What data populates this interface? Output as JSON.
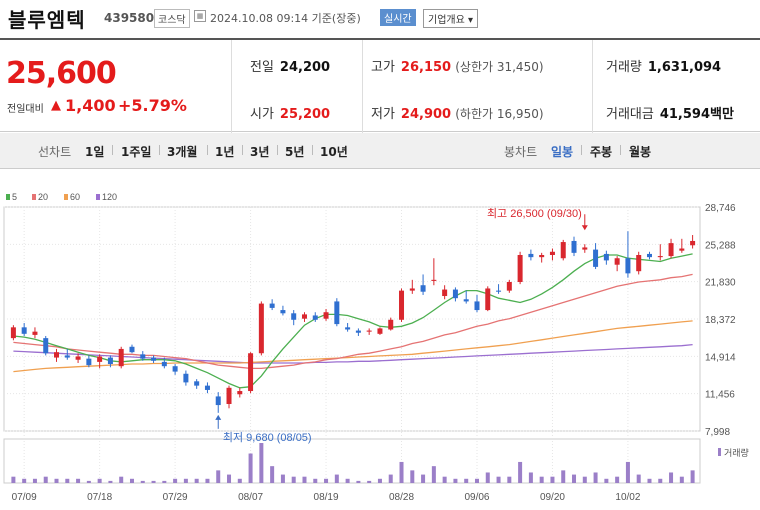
{
  "header": {
    "name": "블루엠텍",
    "code": "439580",
    "market": "코스닥",
    "date_text": "2024.10.08 09:14 기준(장중)",
    "live_label": "실시간",
    "company_label": "기업개요 ▾"
  },
  "price": {
    "current": "25,600",
    "change_label": "전일대비",
    "change_arrow": "▲",
    "change": "1,400",
    "change_pct": "+5.79%"
  },
  "info": {
    "prev_close_label": "전일",
    "prev_close": "24,200",
    "open_label": "시가",
    "open": "25,200",
    "high_label": "고가",
    "high": "26,150",
    "upper_limit": "(상한가 31,450)",
    "low_label": "저가",
    "low": "24,900",
    "lower_limit": "(하한가 16,950)",
    "volume_label": "거래량",
    "volume": "1,631,094",
    "amount_label": "거래대금",
    "amount": "41,594",
    "amount_unit": "백만"
  },
  "tabs": {
    "line_title": "선차트",
    "line_tabs": [
      "1일",
      "1주일",
      "3개월",
      "1년",
      "3년",
      "5년",
      "10년"
    ],
    "candle_title": "봉차트",
    "candle_tabs": [
      "일봉",
      "주봉",
      "월봉"
    ],
    "active_candle": "일봉"
  },
  "chart_data": {
    "type": "candlestick",
    "legend": [
      {
        "name": "5",
        "color": "#4caf50"
      },
      {
        "name": "20",
        "color": "#e57373"
      },
      {
        "name": "60",
        "color": "#f0a050"
      },
      {
        "name": "120",
        "color": "#9b6fd0"
      }
    ],
    "y_ticks": [
      7998,
      11456,
      14914,
      18372,
      21830,
      25288,
      28746
    ],
    "y_tick_labels": [
      "7,998",
      "11,456",
      "14,914",
      "18,372",
      "21,830",
      "25,288",
      "28,746"
    ],
    "x_labels": [
      "07/09",
      "07/18",
      "07/29",
      "08/07",
      "08/19",
      "08/28",
      "09/06",
      "09/20",
      "10/02"
    ],
    "x_label_index": [
      1,
      8,
      15,
      22,
      29,
      36,
      43,
      50,
      57
    ],
    "high_annotation": "최고 26,500 (09/30)",
    "high_index": 53,
    "high_value": 26500,
    "low_annotation": "최저 9,680 (08/05)",
    "low_index": 19,
    "low_value": 9680,
    "volume_label": "거래량",
    "up_color": "#d9272e",
    "down_color": "#2f6fd0",
    "candles": [
      {
        "o": 16600,
        "h": 17800,
        "l": 16400,
        "c": 17600
      },
      {
        "o": 17600,
        "h": 18000,
        "l": 16800,
        "c": 17000
      },
      {
        "o": 16900,
        "h": 17600,
        "l": 16600,
        "c": 17200
      },
      {
        "o": 16600,
        "h": 16800,
        "l": 15000,
        "c": 15200
      },
      {
        "o": 14800,
        "h": 15600,
        "l": 14400,
        "c": 15300
      },
      {
        "o": 15000,
        "h": 15600,
        "l": 14600,
        "c": 14800
      },
      {
        "o": 14600,
        "h": 15200,
        "l": 14300,
        "c": 14900
      },
      {
        "o": 14700,
        "h": 15000,
        "l": 13900,
        "c": 14100
      },
      {
        "o": 14400,
        "h": 15100,
        "l": 13800,
        "c": 14900
      },
      {
        "o": 14800,
        "h": 15000,
        "l": 13900,
        "c": 14200
      },
      {
        "o": 14000,
        "h": 15800,
        "l": 13800,
        "c": 15600
      },
      {
        "o": 15800,
        "h": 16000,
        "l": 15200,
        "c": 15300
      },
      {
        "o": 15100,
        "h": 15400,
        "l": 14500,
        "c": 14700
      },
      {
        "o": 14800,
        "h": 15000,
        "l": 14300,
        "c": 14500
      },
      {
        "o": 14400,
        "h": 14800,
        "l": 13800,
        "c": 14000
      },
      {
        "o": 14000,
        "h": 14200,
        "l": 13200,
        "c": 13500
      },
      {
        "o": 13300,
        "h": 13600,
        "l": 12200,
        "c": 12500
      },
      {
        "o": 12600,
        "h": 12800,
        "l": 11900,
        "c": 12200
      },
      {
        "o": 12200,
        "h": 12500,
        "l": 11500,
        "c": 11800
      },
      {
        "o": 11200,
        "h": 11600,
        "l": 9680,
        "c": 10400
      },
      {
        "o": 10500,
        "h": 12200,
        "l": 10100,
        "c": 12000
      },
      {
        "o": 11400,
        "h": 12000,
        "l": 11100,
        "c": 11700
      },
      {
        "o": 11700,
        "h": 15300,
        "l": 11500,
        "c": 15200
      },
      {
        "o": 15200,
        "h": 20000,
        "l": 15000,
        "c": 19800
      },
      {
        "o": 19800,
        "h": 20200,
        "l": 19200,
        "c": 19400
      },
      {
        "o": 19200,
        "h": 19600,
        "l": 18700,
        "c": 18900
      },
      {
        "o": 18900,
        "h": 19200,
        "l": 17800,
        "c": 18300
      },
      {
        "o": 18400,
        "h": 19000,
        "l": 18100,
        "c": 18800
      },
      {
        "o": 18700,
        "h": 19000,
        "l": 18100,
        "c": 18300
      },
      {
        "o": 18400,
        "h": 19300,
        "l": 18200,
        "c": 19000
      },
      {
        "o": 20000,
        "h": 20300,
        "l": 17700,
        "c": 17900
      },
      {
        "o": 17600,
        "h": 18000,
        "l": 17200,
        "c": 17400
      },
      {
        "o": 17300,
        "h": 17500,
        "l": 16800,
        "c": 17100
      },
      {
        "o": 17200,
        "h": 17500,
        "l": 16900,
        "c": 17300
      },
      {
        "o": 17000,
        "h": 17600,
        "l": 16900,
        "c": 17500
      },
      {
        "o": 17400,
        "h": 18500,
        "l": 17300,
        "c": 18300
      },
      {
        "o": 18300,
        "h": 21200,
        "l": 18100,
        "c": 21000
      },
      {
        "o": 21000,
        "h": 22000,
        "l": 20700,
        "c": 21200
      },
      {
        "o": 21500,
        "h": 22500,
        "l": 20600,
        "c": 20900
      },
      {
        "o": 21900,
        "h": 24000,
        "l": 21500,
        "c": 22000
      },
      {
        "o": 20500,
        "h": 21500,
        "l": 20200,
        "c": 21100
      },
      {
        "o": 21100,
        "h": 21300,
        "l": 20000,
        "c": 20300
      },
      {
        "o": 20200,
        "h": 21000,
        "l": 19800,
        "c": 20000
      },
      {
        "o": 20000,
        "h": 20600,
        "l": 19000,
        "c": 19200
      },
      {
        "o": 19200,
        "h": 21400,
        "l": 19100,
        "c": 21200
      },
      {
        "o": 21000,
        "h": 21600,
        "l": 20700,
        "c": 20900
      },
      {
        "o": 21000,
        "h": 22000,
        "l": 20800,
        "c": 21800
      },
      {
        "o": 21800,
        "h": 24600,
        "l": 21600,
        "c": 24300
      },
      {
        "o": 24400,
        "h": 24800,
        "l": 23800,
        "c": 24100
      },
      {
        "o": 24100,
        "h": 24500,
        "l": 23600,
        "c": 24300
      },
      {
        "o": 24300,
        "h": 24900,
        "l": 23800,
        "c": 24600
      },
      {
        "o": 24000,
        "h": 25700,
        "l": 23800,
        "c": 25500
      },
      {
        "o": 25600,
        "h": 26000,
        "l": 24200,
        "c": 24500
      },
      {
        "o": 24800,
        "h": 25300,
        "l": 24500,
        "c": 25000
      },
      {
        "o": 24800,
        "h": 25400,
        "l": 23000,
        "c": 23200
      },
      {
        "o": 24400,
        "h": 24700,
        "l": 23400,
        "c": 23800
      },
      {
        "o": 23400,
        "h": 24200,
        "l": 22800,
        "c": 24000
      },
      {
        "o": 24000,
        "h": 26500,
        "l": 22200,
        "c": 22600
      },
      {
        "o": 22800,
        "h": 24600,
        "l": 22500,
        "c": 24300
      },
      {
        "o": 24400,
        "h": 24600,
        "l": 23900,
        "c": 24100
      },
      {
        "o": 24100,
        "h": 25300,
        "l": 23800,
        "c": 24200
      },
      {
        "o": 24200,
        "h": 25800,
        "l": 24000,
        "c": 25400
      },
      {
        "o": 24700,
        "h": 25800,
        "l": 24500,
        "c": 24900
      },
      {
        "o": 25200,
        "h": 26150,
        "l": 24900,
        "c": 25600
      }
    ],
    "volumes": [
      3,
      2,
      2,
      3,
      2,
      2,
      2,
      1,
      2,
      1,
      3,
      2,
      1,
      1,
      1,
      2,
      2,
      2,
      2,
      6,
      4,
      2,
      14,
      19,
      8,
      4,
      3,
      3,
      2,
      2,
      4,
      2,
      1,
      1,
      2,
      4,
      10,
      6,
      4,
      8,
      3,
      2,
      2,
      2,
      5,
      3,
      3,
      10,
      5,
      3,
      3,
      6,
      4,
      3,
      5,
      2,
      3,
      10,
      4,
      2,
      2,
      5,
      3,
      6
    ],
    "ma5": [
      16800,
      16700,
      16500,
      16200,
      15900,
      15600,
      15300,
      15000,
      14800,
      14500,
      14400,
      14500,
      14600,
      14600,
      14600,
      14500,
      14200,
      13800,
      13400,
      12900,
      12400,
      12000,
      12100,
      13100,
      14400,
      15600,
      16700,
      17800,
      18400,
      18800,
      18800,
      18700,
      18400,
      18100,
      17700,
      17600,
      17700,
      18000,
      18500,
      19200,
      19900,
      20500,
      21000,
      21000,
      20700,
      20300,
      20100,
      19900,
      20200,
      20700,
      21300,
      22000,
      22800,
      23500,
      24000,
      24300,
      24300,
      24000,
      23900,
      23800,
      23700,
      24000,
      24200,
      24400
    ],
    "ma20": [
      16200,
      16100,
      16000,
      15900,
      15800,
      15600,
      15500,
      15400,
      15300,
      15200,
      15100,
      15100,
      15000,
      15000,
      14900,
      14800,
      14700,
      14500,
      14300,
      14100,
      14000,
      13900,
      13800,
      13800,
      13900,
      14000,
      14100,
      14300,
      14400,
      14600,
      14700,
      14900,
      15100,
      15200,
      15400,
      15600,
      15800,
      16100,
      16300,
      16600,
      16900,
      17100,
      17400,
      17700,
      17900,
      18200,
      18400,
      18700,
      19000,
      19300,
      19600,
      19900,
      20200,
      20500,
      20800,
      21100,
      21400,
      21600,
      21800,
      21900,
      22000,
      22200,
      22300,
      22500
    ],
    "ma60": [
      13500,
      13600,
      13700,
      13800,
      13850,
      13900,
      13950,
      14000,
      14050,
      14100,
      14150,
      14200,
      14200,
      14250,
      14250,
      14300,
      14300,
      14300,
      14300,
      14300,
      14300,
      14300,
      14350,
      14400,
      14450,
      14500,
      14550,
      14600,
      14650,
      14700,
      14750,
      14800,
      14850,
      14900,
      14950,
      15000,
      15050,
      15100,
      15200,
      15300,
      15400,
      15500,
      15600,
      15700,
      15800,
      15900,
      16000,
      16150,
      16300,
      16450,
      16600,
      16750,
      16900,
      17050,
      17200,
      17350,
      17500,
      17600,
      17700,
      17800,
      17900,
      18000,
      18100,
      18200
    ],
    "ma120": [
      15400,
      15350,
      15300,
      15250,
      15200,
      15150,
      15100,
      15050,
      15000,
      14950,
      14900,
      14850,
      14800,
      14750,
      14700,
      14650,
      14600,
      14550,
      14500,
      14450,
      14400,
      14350,
      14300,
      14300,
      14300,
      14300,
      14300,
      14300,
      14350,
      14350,
      14400,
      14400,
      14450,
      14450,
      14500,
      14550,
      14600,
      14650,
      14700,
      14750,
      14800,
      14850,
      14900,
      14950,
      15000,
      15050,
      15100,
      15150,
      15200,
      15250,
      15300,
      15350,
      15400,
      15450,
      15500,
      15550,
      15600,
      15650,
      15700,
      15750,
      15800,
      15850,
      15900,
      16000
    ]
  }
}
